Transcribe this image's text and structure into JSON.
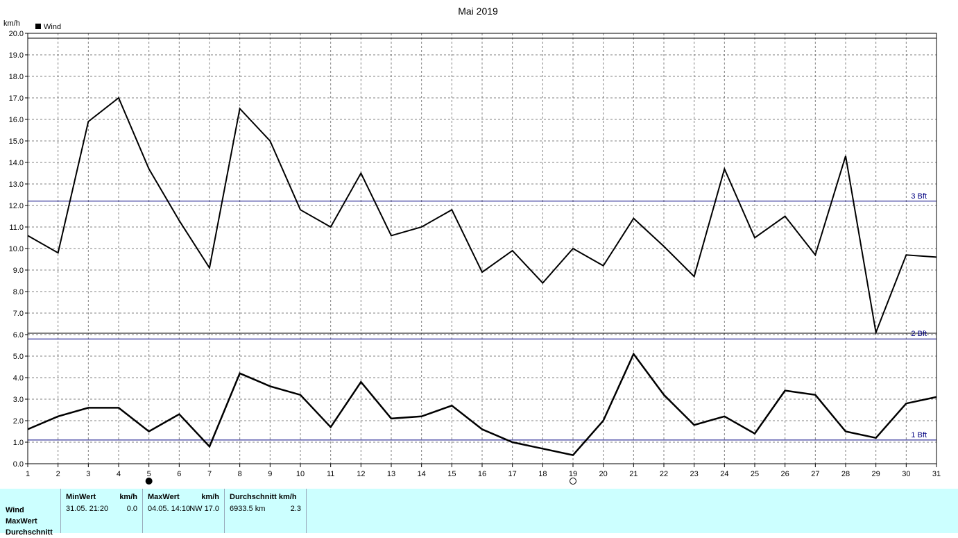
{
  "chart_data": {
    "type": "line",
    "title": "Mai 2019",
    "ylabel": "km/h",
    "legend": {
      "label": "Wind",
      "placement": "top-left"
    },
    "ylim": [
      0.0,
      20.0
    ],
    "yticks_upper": [
      "6.0",
      "7.0",
      "8.0",
      "9.0",
      "10.0",
      "11.0",
      "12.0",
      "13.0",
      "14.0",
      "15.0",
      "16.0",
      "17.0",
      "18.0",
      "19.0",
      "20.0"
    ],
    "yticks_lower": [
      "0.0",
      "1.0",
      "2.0",
      "3.0",
      "4.0",
      "5.0"
    ],
    "x": [
      1,
      2,
      3,
      4,
      5,
      6,
      7,
      8,
      9,
      10,
      11,
      12,
      13,
      14,
      15,
      16,
      17,
      18,
      19,
      20,
      21,
      22,
      23,
      24,
      25,
      26,
      27,
      28,
      29,
      30,
      31
    ],
    "xtick_labels": [
      "1",
      "2",
      "3",
      "4",
      "5",
      "6",
      "7",
      "8",
      "9",
      "10",
      "11",
      "12",
      "13",
      "14",
      "15",
      "16",
      "17",
      "18",
      "19",
      "20",
      "21",
      "22",
      "23",
      "24",
      "25",
      "26",
      "27",
      "28",
      "29",
      "30",
      "31"
    ],
    "series": [
      {
        "values": [
          10.6,
          9.8,
          15.9,
          17.0,
          13.7,
          11.3,
          9.1,
          16.5,
          15.0,
          11.8,
          11.0,
          13.5,
          10.6,
          11.0,
          11.8,
          8.9,
          9.9,
          8.4,
          10.0,
          9.2,
          11.4,
          10.1,
          8.7,
          13.7,
          10.5,
          11.5,
          9.7,
          14.3,
          6.1,
          9.7,
          9.6
        ]
      },
      {
        "values": [
          1.6,
          2.2,
          2.6,
          2.6,
          1.5,
          2.3,
          0.8,
          4.2,
          3.6,
          3.2,
          1.7,
          3.8,
          2.1,
          2.2,
          2.7,
          1.6,
          1.0,
          0.7,
          0.4,
          2.0,
          5.1,
          3.2,
          1.8,
          2.2,
          1.4,
          3.4,
          3.2,
          1.5,
          1.2,
          2.8,
          3.1
        ]
      }
    ],
    "reference_lines": [
      {
        "label": "1 Bft",
        "value": 1.1
      },
      {
        "label": "2 Bft",
        "value": 5.8
      },
      {
        "label": "3 Bft",
        "value": 12.2
      }
    ],
    "moon_phase_markers": [
      {
        "day": 5,
        "phase": "new"
      },
      {
        "day": 19,
        "phase": "full"
      }
    ],
    "grid": true,
    "colors": {
      "line": "#000000",
      "bft": "#000080",
      "grid": "#808080"
    }
  },
  "stats": {
    "row_labels": [
      "Wind",
      "MaxWert",
      "Durchschnitt"
    ],
    "min": {
      "header": "MinWert",
      "unit": "km/h",
      "date": "31.05.  21:20",
      "value": "0.0"
    },
    "max": {
      "header": "MaxWert",
      "unit": "km/h",
      "date": "04.05.  14:10",
      "dir_value": "NW 17.0"
    },
    "avg": {
      "header": "Durchschnitt km/h",
      "distance": "6933.5 km",
      "value": "2.3"
    },
    "background": "#ccffff"
  }
}
